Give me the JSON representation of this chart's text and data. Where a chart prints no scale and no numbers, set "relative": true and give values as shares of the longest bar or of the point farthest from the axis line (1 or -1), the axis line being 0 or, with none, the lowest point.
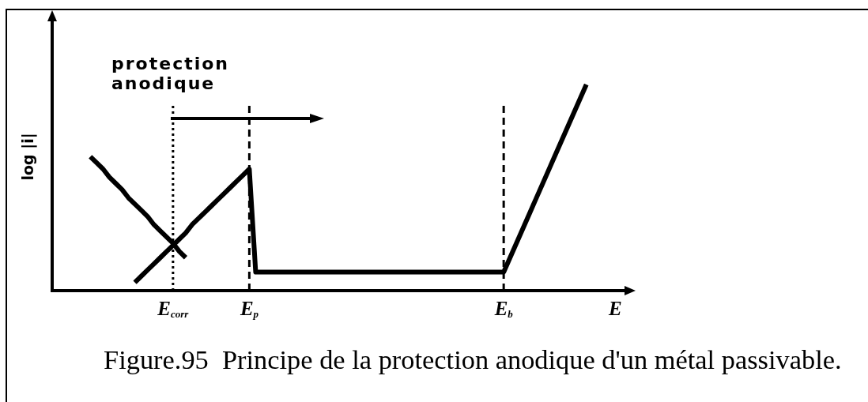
{
  "chart_data": {
    "type": "line",
    "relative": true,
    "xlabel": "E",
    "ylabel": "log |i|",
    "categories": [
      null,
      null,
      null,
      null,
      null,
      null,
      null,
      null,
      null,
      null,
      null,
      null,
      null,
      null,
      null,
      null,
      null,
      null,
      null,
      "E$_{corr}$",
      null,
      null,
      null,
      null,
      null,
      null,
      null,
      null,
      null,
      null,
      null,
      "E$_{p}$",
      null,
      null,
      null,
      null,
      null,
      null,
      null,
      null,
      null,
      null,
      null,
      null,
      null,
      null,
      null,
      null,
      null,
      null,
      null,
      null,
      null,
      null,
      null,
      null,
      null,
      null,
      null,
      null,
      null,
      null,
      null,
      null,
      null,
      null,
      null,
      null,
      null,
      null,
      null,
      "E$_{b}$",
      null,
      null,
      null,
      null,
      null,
      null,
      null,
      null,
      null,
      null,
      null,
      null,
      null,
      null,
      null,
      null,
      null,
      null,
      null
    ],
    "series": [
      {
        "color": "#000000",
        "values": [
          null,
          null,
          null,
          null,
          null,
          null,
          0.65,
          0.62,
          0.59,
          0.55,
          0.52,
          0.49,
          0.45,
          0.42,
          0.39,
          0.36,
          0.32,
          0.29,
          0.26,
          0.23,
          0.19,
          0.16,
          null,
          null,
          null,
          null,
          null,
          null,
          null,
          null,
          null,
          null,
          null,
          null,
          null,
          null,
          null,
          null,
          null,
          null,
          null,
          null,
          null,
          null,
          null,
          null,
          null,
          null,
          null,
          null,
          null,
          null,
          null,
          null,
          null,
          null,
          null,
          null,
          null,
          null,
          null,
          null,
          null,
          null,
          null,
          null,
          null,
          null,
          null,
          null,
          null,
          null,
          null,
          null,
          null,
          null,
          null,
          null,
          null,
          null,
          null,
          null,
          null,
          null,
          null,
          null,
          null,
          null,
          null,
          null,
          null
        ]
      },
      {
        "color": "#000000",
        "values": [
          null,
          null,
          null,
          null,
          null,
          null,
          null,
          null,
          null,
          null,
          null,
          null,
          null,
          0.04,
          0.07,
          0.1,
          0.13,
          0.16,
          0.19,
          0.22,
          0.25,
          0.28,
          0.32,
          0.35,
          0.38,
          0.41,
          0.44,
          0.47,
          0.5,
          0.53,
          0.56,
          0.59,
          0.09,
          0.09,
          0.09,
          0.09,
          0.09,
          0.09,
          0.09,
          0.09,
          0.09,
          0.09,
          0.09,
          0.09,
          0.09,
          0.09,
          0.09,
          0.09,
          0.09,
          0.09,
          0.09,
          0.09,
          0.09,
          0.09,
          0.09,
          0.09,
          0.09,
          0.09,
          0.09,
          0.09,
          0.09,
          0.09,
          0.09,
          0.09,
          0.09,
          0.09,
          0.09,
          0.09,
          0.09,
          0.09,
          0.09,
          0.09,
          0.16,
          0.23,
          0.3,
          0.37,
          0.44,
          0.51,
          0.58,
          0.65,
          0.72,
          0.79,
          0.86,
          0.93,
          1,
          null,
          null,
          null,
          null,
          null,
          null
        ]
      }
    ],
    "ref_lines": [
      {
        "axis": "x",
        "value": "E$_{corr}$",
        "line_style": "dotted",
        "color": "#000000"
      },
      {
        "axis": "x",
        "value": "E$_{p}$",
        "line_style": "dashed",
        "color": "#000000"
      },
      {
        "axis": "x",
        "value": "E$_{b}$",
        "line_style": "dashed",
        "color": "#000000"
      }
    ],
    "annotations": [
      "protection anodique",
      "Figure.95  Principe de la protection anodique d'un métal passivable."
    ],
    "grid": false,
    "legend": false,
    "marker": "none",
    "tick_labels": "x"
  }
}
